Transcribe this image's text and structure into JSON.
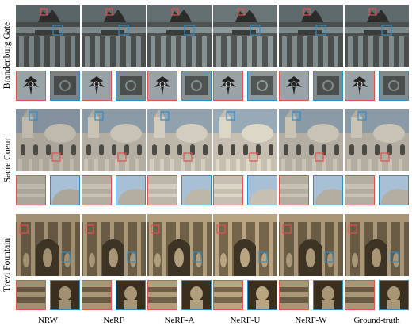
{
  "scenes": [
    {
      "name": "Brandenburg Gate"
    },
    {
      "name": "Sacre Coeur"
    },
    {
      "name": "Trevi Fountain"
    }
  ],
  "methods": [
    "NRW",
    "NeRF",
    "NeRF-A",
    "NeRF-U",
    "NeRF-W",
    "Ground-truth"
  ],
  "colors": {
    "red_box": "#e0534e",
    "blue_box": "#2d8ec9"
  }
}
